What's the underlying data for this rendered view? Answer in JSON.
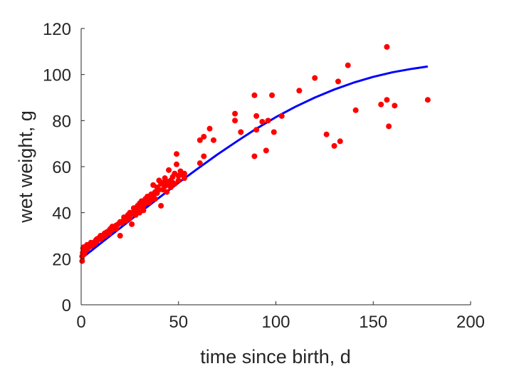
{
  "chart_data": {
    "type": "scatter",
    "title": "",
    "xlabel": "time since birth, d",
    "ylabel": "wet weight, g",
    "xlim": [
      0,
      200
    ],
    "ylim": [
      0,
      120
    ],
    "xticks": [
      "0",
      "50",
      "100",
      "150",
      "200"
    ],
    "yticks": [
      "0",
      "20",
      "40",
      "60",
      "80",
      "100",
      "120"
    ],
    "grid": false,
    "legend": "none",
    "series": [
      {
        "type": "scatter",
        "color": "#ff0000",
        "points": [
          [
            0.5,
            19
          ],
          [
            0.5,
            21
          ],
          [
            0.8,
            22.5
          ],
          [
            1,
            23
          ],
          [
            1,
            24.5
          ],
          [
            1.2,
            25
          ],
          [
            1.5,
            22
          ],
          [
            2,
            23.5
          ],
          [
            2,
            25
          ],
          [
            2.5,
            24
          ],
          [
            3,
            24
          ],
          [
            3,
            26
          ],
          [
            4,
            25
          ],
          [
            4,
            25.5
          ],
          [
            5,
            25.5
          ],
          [
            5,
            27
          ],
          [
            6,
            26
          ],
          [
            6.5,
            27
          ],
          [
            7,
            26.5
          ],
          [
            7.5,
            28
          ],
          [
            8,
            27.5
          ],
          [
            8,
            28.5
          ],
          [
            9,
            29
          ],
          [
            10,
            28.5
          ],
          [
            10,
            30
          ],
          [
            11,
            29.5
          ],
          [
            12,
            31
          ],
          [
            12.5,
            30
          ],
          [
            13,
            31.5
          ],
          [
            14,
            32
          ],
          [
            14.5,
            31
          ],
          [
            15,
            33
          ],
          [
            16,
            32.5
          ],
          [
            16,
            34
          ],
          [
            17,
            33.5
          ],
          [
            18,
            34.5
          ],
          [
            18,
            33
          ],
          [
            19,
            35
          ],
          [
            20,
            30
          ],
          [
            20,
            36
          ],
          [
            21,
            35.5
          ],
          [
            22,
            37
          ],
          [
            22,
            38
          ],
          [
            23,
            36.5
          ],
          [
            24,
            39
          ],
          [
            24,
            38
          ],
          [
            25,
            40
          ],
          [
            25,
            37.5
          ],
          [
            26,
            35
          ],
          [
            26,
            39.5
          ],
          [
            27,
            40.5
          ],
          [
            27,
            42
          ],
          [
            28,
            41
          ],
          [
            28,
            39
          ],
          [
            29,
            43
          ],
          [
            29,
            41.5
          ],
          [
            30,
            40
          ],
          [
            30,
            44
          ],
          [
            31,
            42.5
          ],
          [
            31,
            45
          ],
          [
            32,
            43
          ],
          [
            32,
            41
          ],
          [
            33,
            44
          ],
          [
            33,
            46
          ],
          [
            34,
            45
          ],
          [
            34,
            47
          ],
          [
            35,
            44.5
          ],
          [
            35,
            46.5
          ],
          [
            36,
            48
          ],
          [
            36,
            45.5
          ],
          [
            37,
            47.5
          ],
          [
            37,
            52
          ],
          [
            38,
            49
          ],
          [
            38,
            46
          ],
          [
            39,
            51
          ],
          [
            39,
            48.5
          ],
          [
            40,
            50
          ],
          [
            40,
            54
          ],
          [
            41,
            52.5
          ],
          [
            41,
            43
          ],
          [
            42,
            53
          ],
          [
            42,
            50
          ],
          [
            43,
            55
          ],
          [
            43,
            51.5
          ],
          [
            44,
            49
          ],
          [
            44,
            53.5
          ],
          [
            45,
            58.5
          ],
          [
            45,
            52
          ],
          [
            46,
            54
          ],
          [
            46,
            51
          ],
          [
            47,
            55.5
          ],
          [
            47,
            53
          ],
          [
            48,
            52.5
          ],
          [
            48,
            57
          ],
          [
            49,
            61
          ],
          [
            49,
            65.5
          ],
          [
            50,
            54
          ],
          [
            50,
            56
          ],
          [
            51,
            58
          ],
          [
            52,
            56.5
          ],
          [
            53,
            55
          ],
          [
            53,
            57
          ],
          [
            61,
            61.5
          ],
          [
            61,
            71.5
          ],
          [
            63,
            73
          ],
          [
            63,
            64.5
          ],
          [
            66,
            76.5
          ],
          [
            68,
            71.5
          ],
          [
            79,
            83
          ],
          [
            79,
            80
          ],
          [
            82,
            75
          ],
          [
            89,
            91
          ],
          [
            89,
            64.5
          ],
          [
            90,
            82
          ],
          [
            90,
            76
          ],
          [
            93,
            79.5
          ],
          [
            95,
            67
          ],
          [
            96,
            80
          ],
          [
            98,
            91
          ],
          [
            99,
            75
          ],
          [
            103,
            82
          ],
          [
            112,
            93
          ],
          [
            120,
            98.5
          ],
          [
            126,
            74
          ],
          [
            130,
            69
          ],
          [
            132,
            97
          ],
          [
            133,
            71
          ],
          [
            137,
            104
          ],
          [
            141,
            84.5
          ],
          [
            154,
            87
          ],
          [
            157,
            89
          ],
          [
            157,
            112
          ],
          [
            158,
            77.5
          ],
          [
            161,
            86.5
          ],
          [
            178,
            89
          ]
        ]
      },
      {
        "type": "line",
        "color": "#0000ff",
        "points": [
          [
            0,
            20
          ],
          [
            10,
            26.7
          ],
          [
            20,
            33.3
          ],
          [
            30,
            40
          ],
          [
            40,
            46.5
          ],
          [
            50,
            53
          ],
          [
            60,
            59.2
          ],
          [
            70,
            65.3
          ],
          [
            80,
            71
          ],
          [
            90,
            76.5
          ],
          [
            100,
            81.5
          ],
          [
            110,
            86
          ],
          [
            120,
            90
          ],
          [
            130,
            93.5
          ],
          [
            140,
            96.5
          ],
          [
            150,
            99
          ],
          [
            160,
            101
          ],
          [
            170,
            102.5
          ],
          [
            178,
            103.5
          ]
        ]
      }
    ]
  }
}
